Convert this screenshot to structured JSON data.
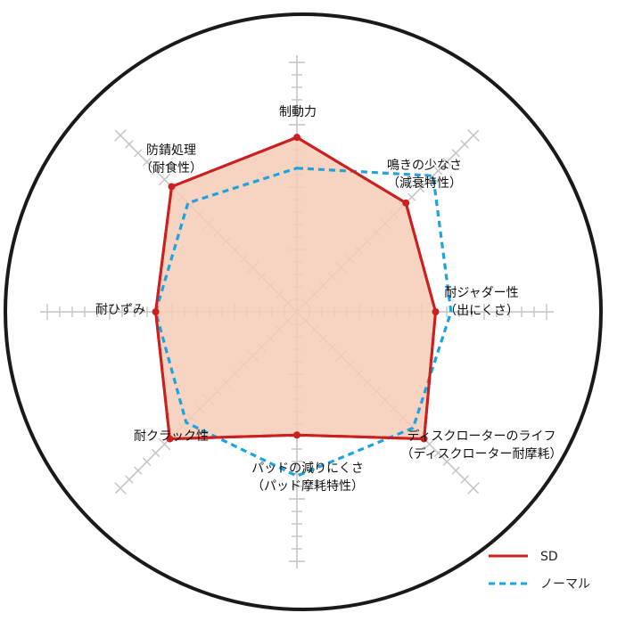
{
  "chart_data": {
    "type": "radar",
    "axes": [
      {
        "label": [
          "制動力"
        ]
      },
      {
        "label": [
          "鳴きの少なさ",
          "（減衰特性）"
        ]
      },
      {
        "label": [
          "耐ジャダー性",
          "（出にくさ）"
        ]
      },
      {
        "label": [
          "ディスクローターのライフ",
          "（ディスクローター耐摩耗）"
        ]
      },
      {
        "label": [
          "パッドの減りにくさ",
          "（パッド摩耗特性）"
        ]
      },
      {
        "label": [
          "耐クラック性"
        ]
      },
      {
        "label": [
          "耐ひずみ"
        ]
      },
      {
        "label": [
          "防錆処理",
          "（耐食性）"
        ]
      }
    ],
    "rmax": 10,
    "series": [
      {
        "name": "SD",
        "color": "#cc1f1f",
        "fill": "#f5cdb6",
        "style": "solid",
        "markers": true,
        "values": [
          6.8,
          6.0,
          5.4,
          7.0,
          4.8,
          7.0,
          5.5,
          6.9
        ]
      },
      {
        "name": "ノーマル",
        "color": "#1ea3e0",
        "style": "dashed",
        "markers": false,
        "values": [
          5.6,
          7.5,
          6.0,
          6.4,
          6.4,
          6.1,
          5.5,
          6.0
        ]
      }
    ],
    "legend": {
      "position": "bottom-right"
    }
  }
}
